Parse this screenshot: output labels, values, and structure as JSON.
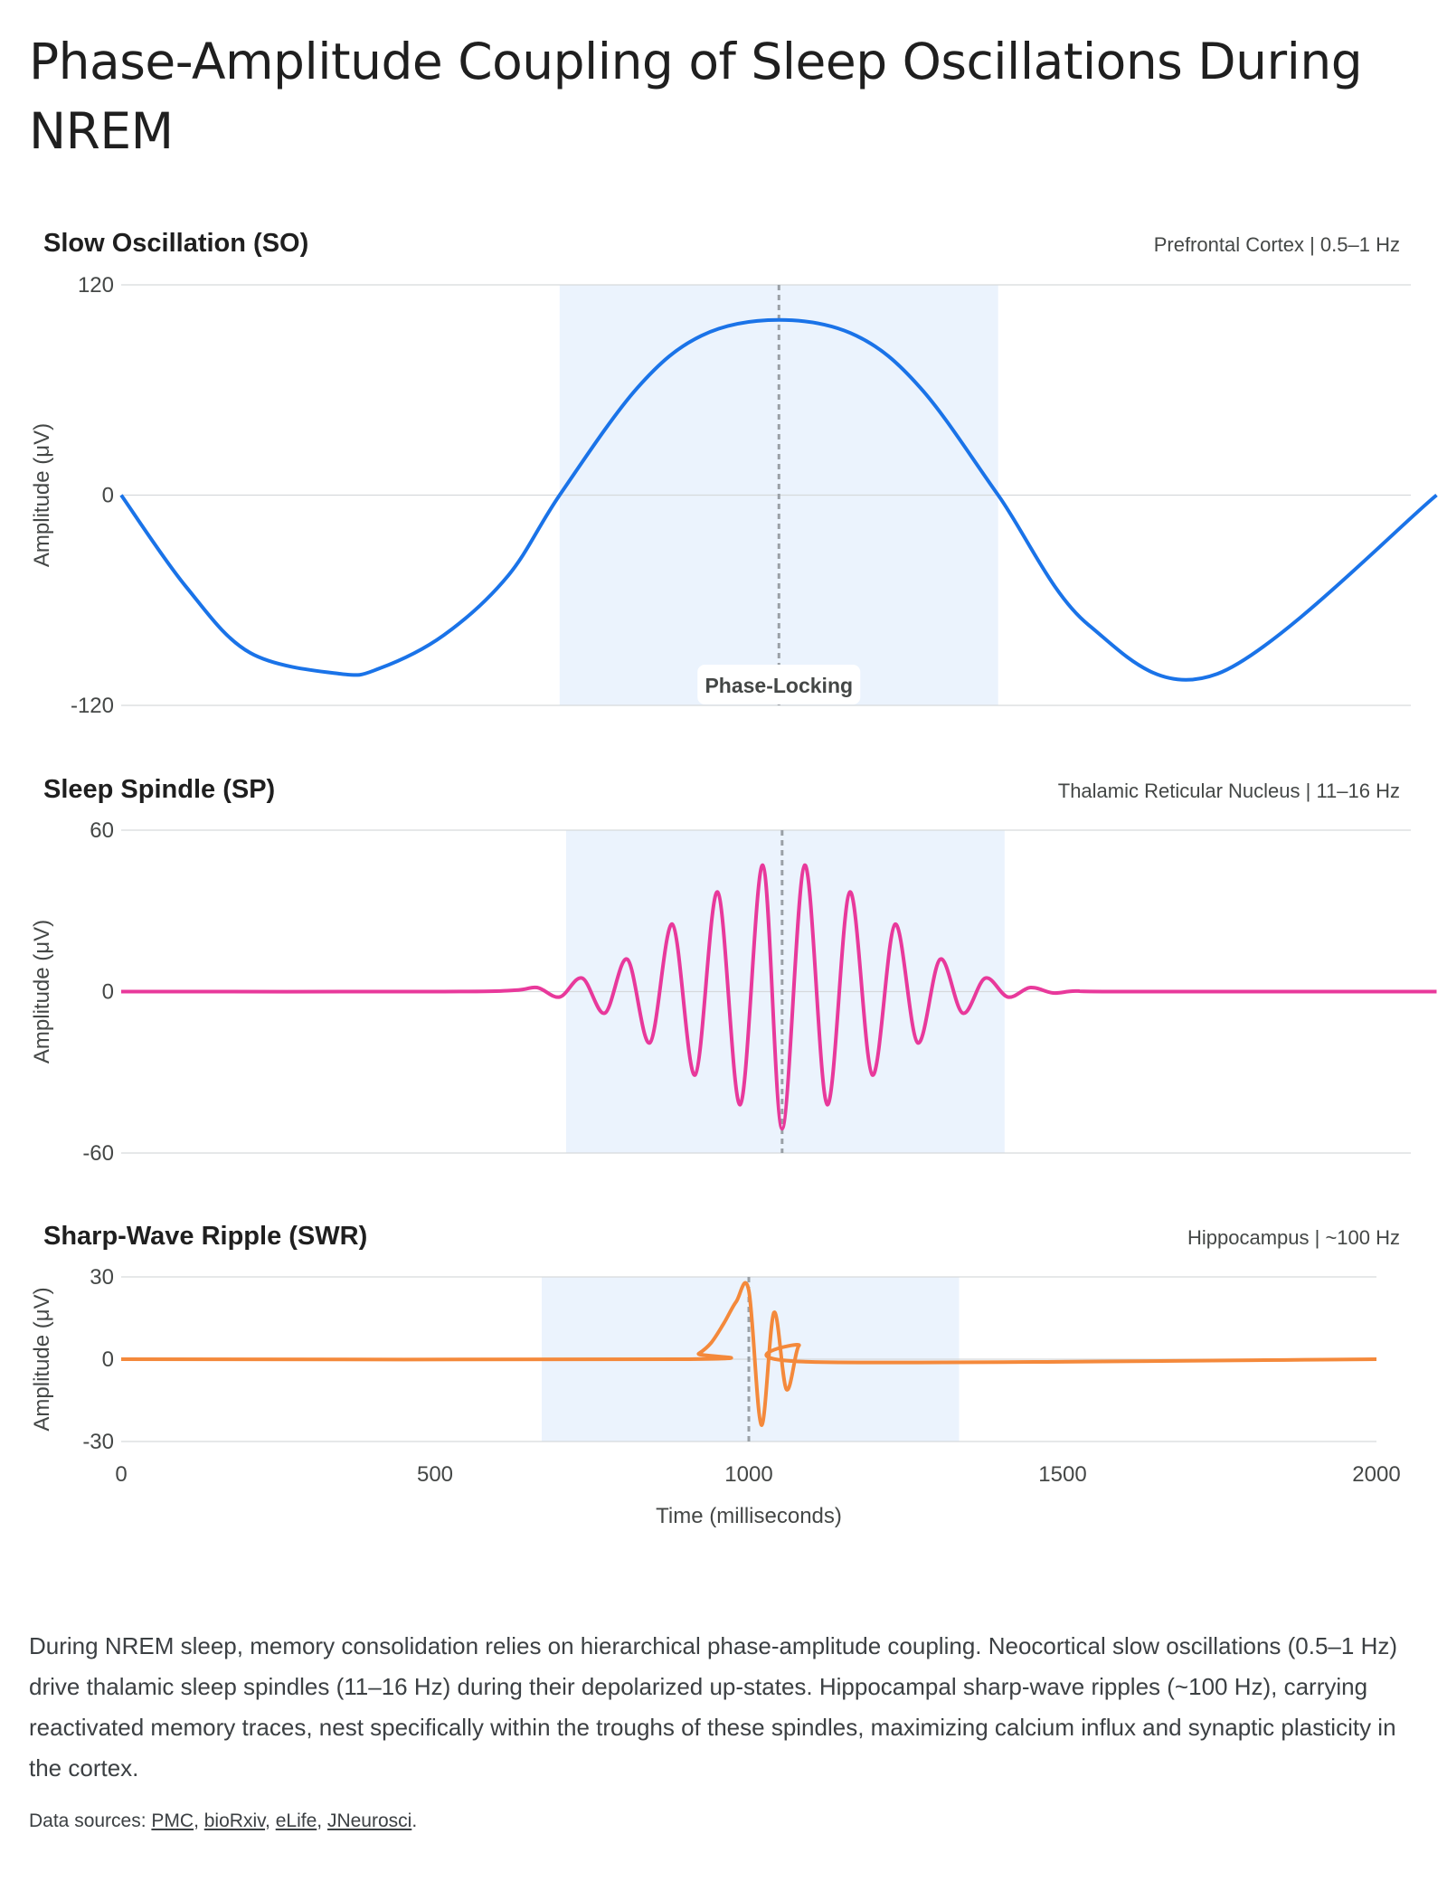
{
  "page": {
    "title": "Phase-Amplitude Coupling of Sleep Oscillations During NREM",
    "description": "During NREM sleep, memory consolidation relies on hierarchical phase-amplitude coupling. Neocortical slow oscillations (0.5–1 Hz) drive thalamic sleep spindles (11–16 Hz) during their depolarized up-states. Hippocampal sharp-wave ripples (~100 Hz), carrying reactivated memory traces, nest specifically within the troughs of these spindles, maximizing calcium influx and synaptic plasticity in the cortex.",
    "sources_label": "Data sources:",
    "sources": [
      "PMC",
      "bioRxiv",
      "eLife",
      "JNeurosci"
    ],
    "sources_end": "."
  },
  "chart_data": [
    {
      "type": "line",
      "title": "Slow Oscillation (SO)",
      "subtitle": "Prefrontal Cortex | 0.5–1 Hz",
      "ylabel": "Amplitude (μV)",
      "xlabel": "Time (milliseconds)",
      "xlim": [
        0,
        2000
      ],
      "ylim": [
        -120,
        120
      ],
      "yticks": [
        "120",
        "0",
        "-120"
      ],
      "color": "#1a73e8",
      "highlight_x": [
        680,
        1360
      ],
      "highlight_color": "#ebf3fd",
      "marker_x": 1020,
      "annotation": "Phase-Locking",
      "x": [
        0,
        100,
        200,
        340,
        400,
        500,
        600,
        680,
        800,
        900,
        1020,
        1140,
        1240,
        1360,
        1500,
        1700,
        2040
      ],
      "y": [
        0,
        -52,
        -90,
        -102,
        -99,
        -80,
        -46,
        0,
        61,
        91,
        100,
        91,
        61,
        0,
        -74,
        -102,
        0
      ]
    },
    {
      "type": "line",
      "title": "Sleep Spindle (SP)",
      "subtitle": "Thalamic Reticular Nucleus | 11–16 Hz",
      "ylabel": "Amplitude (μV)",
      "xlim": [
        0,
        2000
      ],
      "ylim": [
        -60,
        60
      ],
      "yticks": [
        "60",
        "0",
        "-60"
      ],
      "color": "#e8399b",
      "highlight_x": [
        690,
        1370
      ],
      "highlight_color": "#ebf3fd",
      "marker_x": 1025,
      "x": [
        0,
        500,
        610,
        645,
        680,
        715,
        750,
        785,
        820,
        855,
        890,
        925,
        960,
        995,
        1025,
        1060,
        1095,
        1130,
        1165,
        1200,
        1235,
        1270,
        1305,
        1340,
        1375,
        1410,
        1445,
        1480,
        1550,
        2040
      ],
      "y": [
        0,
        0,
        0.5,
        1.5,
        -2,
        5,
        -8,
        12,
        -19,
        25,
        -31,
        37,
        -42,
        47,
        -51,
        47,
        -42,
        37,
        -31,
        25,
        -19,
        12,
        -8,
        5,
        -2,
        1.5,
        -0.5,
        0.2,
        0,
        0
      ]
    },
    {
      "type": "line",
      "title": "Sharp-Wave Ripple (SWR)",
      "subtitle": "Hippocampus | ~100 Hz",
      "ylabel": "Amplitude (μV)",
      "xlabel": "Time (milliseconds)",
      "xticks": [
        "0",
        "500",
        "1000",
        "1500",
        "2000"
      ],
      "xlim": [
        0,
        2000
      ],
      "ylim": [
        -30,
        30
      ],
      "yticks": [
        "30",
        "0",
        "-30"
      ],
      "color": "#f4893b",
      "highlight_x": [
        670,
        1335
      ],
      "highlight_color": "#ebf3fd",
      "marker_x": 1000,
      "x": [
        0,
        900,
        920,
        940,
        960,
        980,
        1000,
        1020,
        1040,
        1060,
        1080,
        1100,
        2000
      ],
      "y": [
        0,
        0,
        2,
        6,
        13,
        21,
        25,
        -24,
        17,
        -11,
        5,
        -1,
        0
      ]
    }
  ]
}
